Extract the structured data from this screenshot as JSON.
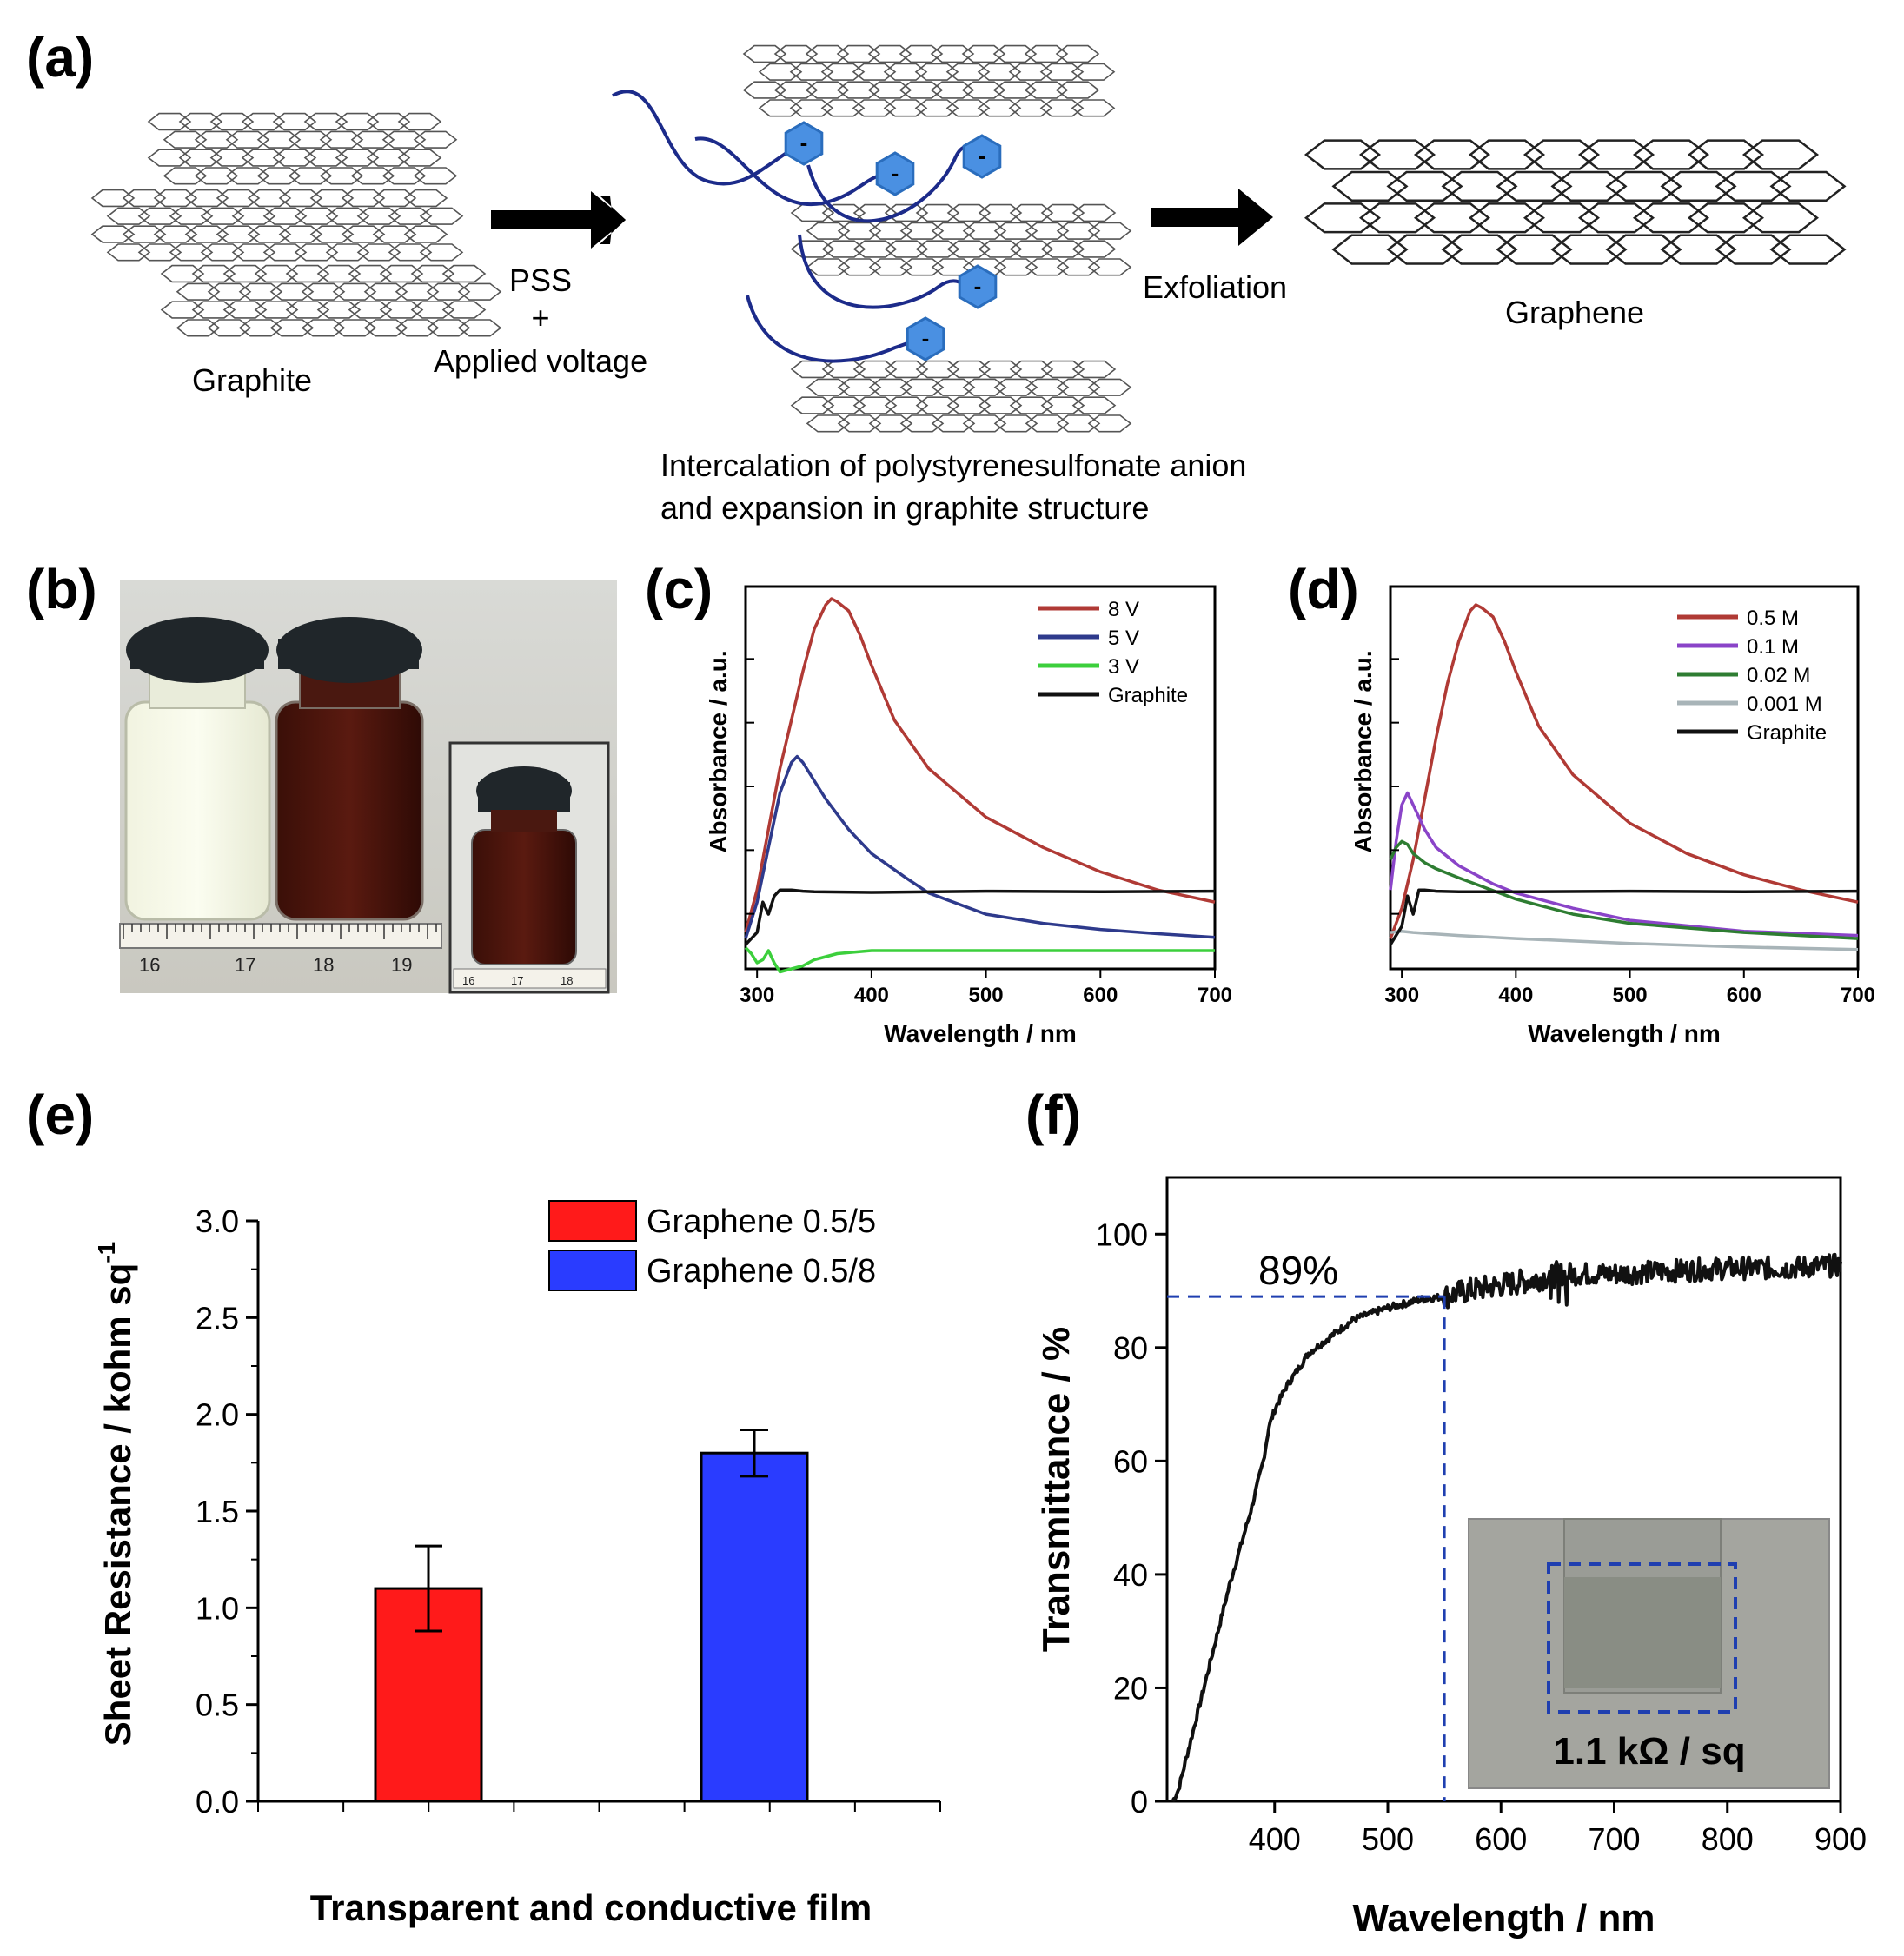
{
  "panels": {
    "a": "(a)",
    "b": "(b)",
    "c": "(c)",
    "d": "(d)",
    "e": "(e)",
    "f": "(f)"
  },
  "schematic": {
    "graphite_label": "Graphite",
    "step1_line1": "PSS",
    "step1_line2": "+",
    "step1_line3": "Applied voltage",
    "intercalation_line1": "Intercalation of polystyrenesulfonate anion",
    "intercalation_line2": "and expansion in graphite structure",
    "step2_label": "Exfoliation",
    "graphene_label": "Graphene",
    "anion_symbol": "-"
  },
  "photo": {
    "ruler_labels": [
      "16",
      "17",
      "18",
      "19"
    ],
    "inset_ruler_labels": [
      "16",
      "17",
      "18"
    ]
  },
  "colors": {
    "red": "#b03a35",
    "navy": "#2e3a8c",
    "green": "#3ccf3c",
    "black": "#111111",
    "purple": "#8a44c8",
    "darkgreen": "#2e7d32",
    "grey": "#a8b4b8",
    "bar_red": "#ff1a1a",
    "bar_blue": "#2a3cff",
    "dash_blue": "#1f3fb0",
    "hex_blue": "#4a90e2"
  },
  "chart_data": [
    {
      "id": "c",
      "type": "line",
      "xlabel": "Wavelength / nm",
      "ylabel": "Absorbance / a.u.",
      "xlim": [
        290,
        700
      ],
      "ylim": [
        -0.3,
        6.0
      ],
      "xticks": [
        300,
        400,
        500,
        600,
        700
      ],
      "series": [
        {
          "name": "8 V",
          "color": "#b03a35",
          "x": [
            290,
            300,
            310,
            320,
            330,
            340,
            350,
            360,
            365,
            370,
            380,
            390,
            400,
            420,
            450,
            500,
            550,
            600,
            650,
            700
          ],
          "y": [
            0.3,
            1.0,
            2.0,
            3.0,
            3.8,
            4.6,
            5.3,
            5.7,
            5.8,
            5.75,
            5.6,
            5.2,
            4.7,
            3.8,
            3.0,
            2.2,
            1.7,
            1.3,
            1.0,
            0.8
          ]
        },
        {
          "name": "5 V",
          "color": "#2e3a8c",
          "x": [
            290,
            300,
            310,
            320,
            330,
            335,
            340,
            350,
            360,
            380,
            400,
            430,
            450,
            500,
            550,
            600,
            650,
            700
          ],
          "y": [
            0.2,
            0.8,
            1.7,
            2.6,
            3.1,
            3.2,
            3.1,
            2.8,
            2.5,
            2.0,
            1.6,
            1.2,
            0.95,
            0.6,
            0.45,
            0.35,
            0.28,
            0.22
          ]
        },
        {
          "name": "3 V",
          "color": "#3ccf3c",
          "x": [
            290,
            295,
            300,
            305,
            310,
            315,
            320,
            330,
            340,
            350,
            370,
            400,
            450,
            500,
            600,
            700
          ],
          "y": [
            0.05,
            -0.05,
            -0.2,
            -0.15,
            0.0,
            -0.2,
            -0.35,
            -0.3,
            -0.25,
            -0.15,
            -0.05,
            0.0,
            0.0,
            0.0,
            0.0,
            0.0
          ]
        },
        {
          "name": "Graphite",
          "color": "#111111",
          "x": [
            290,
            300,
            305,
            310,
            315,
            320,
            330,
            340,
            350,
            400,
            500,
            600,
            700
          ],
          "y": [
            0.1,
            0.3,
            0.8,
            0.6,
            0.9,
            1.0,
            1.0,
            0.98,
            0.97,
            0.96,
            0.98,
            0.97,
            0.98
          ]
        }
      ]
    },
    {
      "id": "d",
      "type": "line",
      "xlabel": "Wavelength / nm",
      "ylabel": "Absorbance / a.u.",
      "xlim": [
        290,
        700
      ],
      "ylim": [
        -0.3,
        6.0
      ],
      "xticks": [
        300,
        400,
        500,
        600,
        700
      ],
      "series": [
        {
          "name": "0.5 M",
          "color": "#b03a35",
          "x": [
            290,
            300,
            310,
            320,
            330,
            340,
            350,
            360,
            365,
            370,
            380,
            390,
            400,
            420,
            450,
            500,
            550,
            600,
            650,
            700
          ],
          "y": [
            0.2,
            0.7,
            1.5,
            2.5,
            3.5,
            4.4,
            5.1,
            5.6,
            5.7,
            5.65,
            5.5,
            5.1,
            4.6,
            3.7,
            2.9,
            2.1,
            1.6,
            1.25,
            1.0,
            0.8
          ]
        },
        {
          "name": "0.1 M",
          "color": "#8a44c8",
          "x": [
            290,
            295,
            300,
            305,
            310,
            320,
            330,
            350,
            380,
            400,
            450,
            500,
            600,
            700
          ],
          "y": [
            1.0,
            1.8,
            2.4,
            2.6,
            2.4,
            2.0,
            1.7,
            1.4,
            1.1,
            0.95,
            0.7,
            0.5,
            0.32,
            0.25
          ]
        },
        {
          "name": "0.02 M",
          "color": "#2e7d32",
          "x": [
            290,
            295,
            300,
            305,
            310,
            320,
            330,
            350,
            400,
            450,
            500,
            600,
            700
          ],
          "y": [
            1.5,
            1.7,
            1.8,
            1.75,
            1.6,
            1.45,
            1.35,
            1.2,
            0.85,
            0.6,
            0.45,
            0.3,
            0.2
          ]
        },
        {
          "name": "0.001 M",
          "color": "#a8b4b8",
          "x": [
            290,
            300,
            310,
            350,
            400,
            500,
            600,
            700
          ],
          "y": [
            0.3,
            0.32,
            0.3,
            0.25,
            0.2,
            0.12,
            0.06,
            0.02
          ]
        },
        {
          "name": "Graphite",
          "color": "#111111",
          "x": [
            290,
            300,
            305,
            310,
            315,
            320,
            330,
            350,
            400,
            500,
            600,
            700
          ],
          "y": [
            0.1,
            0.4,
            0.9,
            0.6,
            1.0,
            1.0,
            0.98,
            0.97,
            0.97,
            0.98,
            0.97,
            0.98
          ]
        }
      ]
    },
    {
      "id": "e",
      "type": "bar",
      "xlabel": "Transparent and conductive film",
      "ylabel": "Sheet Resistance / kohm sq",
      "ylabel_superscript": "-1",
      "ylim": [
        0,
        3.0
      ],
      "yticks": [
        "0.0",
        "0.5",
        "1.0",
        "1.5",
        "2.0",
        "2.5",
        "3.0"
      ],
      "categories": [
        "Graphene 0.5/5",
        "Graphene 0.5/8"
      ],
      "values": [
        1.1,
        1.8
      ],
      "errors": [
        0.22,
        0.12
      ],
      "colors": [
        "#ff1a1a",
        "#2a3cff"
      ]
    },
    {
      "id": "f",
      "type": "line",
      "xlabel": "Wavelength / nm",
      "ylabel": "Transmittance / %",
      "xlim": [
        305,
        900
      ],
      "ylim": [
        0,
        110
      ],
      "xticks": [
        400,
        500,
        600,
        700,
        800,
        900
      ],
      "yticks": [
        0,
        20,
        40,
        60,
        80,
        100
      ],
      "annotation": "89%",
      "annotation_value": 89,
      "annotation_x": 550,
      "inset_text": "1.1 kΩ / sq",
      "series": [
        {
          "name": "Film",
          "color": "#111111",
          "x": [
            310,
            315,
            320,
            330,
            340,
            350,
            360,
            370,
            380,
            390,
            395,
            400,
            410,
            420,
            430,
            450,
            470,
            500,
            530,
            550,
            570,
            600,
            630,
            650,
            700,
            750,
            800,
            850,
            900
          ],
          "y": [
            0,
            2,
            6,
            14,
            22,
            30,
            38,
            45,
            52,
            60,
            66,
            69,
            73,
            76,
            79,
            82,
            85,
            87,
            88.5,
            89,
            90,
            91,
            92,
            93,
            93,
            93.5,
            94,
            94,
            94.5
          ]
        }
      ]
    }
  ]
}
